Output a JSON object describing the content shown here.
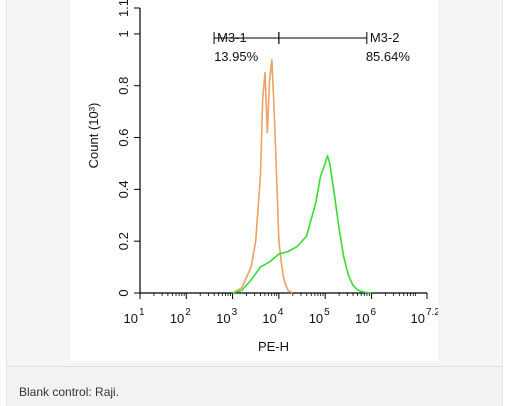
{
  "chart_data": {
    "type": "line",
    "title": "",
    "xlabel": "PE-H",
    "ylabel": "Count (10³)",
    "x_scale": "log",
    "xlim_log10": [
      1,
      7.2
    ],
    "ylim": [
      0,
      1.1
    ],
    "x_ticks": [
      {
        "base": "10",
        "exp": "1"
      },
      {
        "base": "10",
        "exp": "2"
      },
      {
        "base": "10",
        "exp": "3"
      },
      {
        "base": "10",
        "exp": "4"
      },
      {
        "base": "10",
        "exp": "5"
      },
      {
        "base": "10",
        "exp": "6"
      },
      {
        "base": "10",
        "exp": "7.2"
      }
    ],
    "y_ticks": [
      "0",
      "0.2",
      "0.4",
      "0.6",
      "0.8",
      "1",
      "1.1"
    ],
    "colors": {
      "control": "#f0a060",
      "sample": "#33dd33"
    },
    "series": [
      {
        "key": "control",
        "log10_x": [
          3.0,
          3.2,
          3.4,
          3.5,
          3.6,
          3.65,
          3.7,
          3.75,
          3.8,
          3.85,
          3.9,
          3.95,
          4.0,
          4.05,
          4.1,
          4.15,
          4.2,
          4.3
        ],
        "y": [
          0.0,
          0.02,
          0.1,
          0.2,
          0.45,
          0.75,
          0.85,
          0.62,
          0.82,
          0.9,
          0.7,
          0.45,
          0.2,
          0.12,
          0.06,
          0.03,
          0.01,
          0.0
        ]
      },
      {
        "key": "sample",
        "log10_x": [
          3.0,
          3.2,
          3.4,
          3.6,
          3.8,
          4.0,
          4.2,
          4.4,
          4.6,
          4.8,
          4.9,
          5.0,
          5.05,
          5.1,
          5.2,
          5.3,
          5.4,
          5.5,
          5.6,
          5.7,
          5.8,
          5.9,
          6.0
        ],
        "y": [
          0.0,
          0.01,
          0.05,
          0.1,
          0.12,
          0.15,
          0.16,
          0.18,
          0.22,
          0.35,
          0.45,
          0.5,
          0.53,
          0.5,
          0.38,
          0.25,
          0.14,
          0.07,
          0.03,
          0.012,
          0.005,
          0.002,
          0.0
        ]
      }
    ],
    "gates": [
      {
        "name": "M3-1",
        "percent": "13.95%",
        "from_log10": 2.6,
        "to_log10": 4.0
      },
      {
        "name": "M3-2",
        "percent": "85.64%",
        "from_log10": 4.0,
        "to_log10": 5.9
      }
    ]
  },
  "caption": "Blank control: Raji."
}
